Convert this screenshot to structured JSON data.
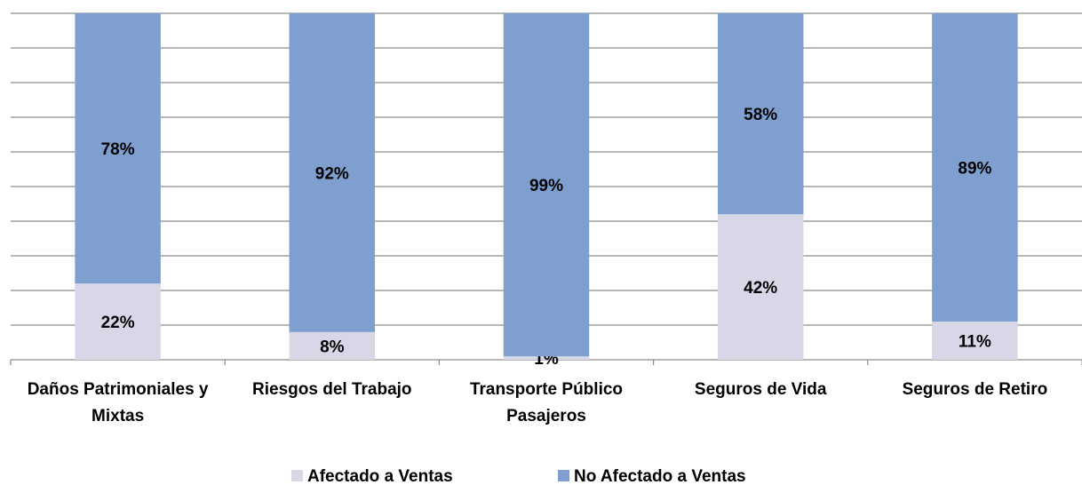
{
  "chart_data": {
    "type": "stacked_bar",
    "categories": [
      "Daños Patrimoniales y Mixtas",
      "Riesgos del Trabajo",
      "Transporte Público Pasajeros",
      "Seguros de Vida",
      "Seguros de Retiro"
    ],
    "series": [
      {
        "name": "Afectado a Ventas",
        "color": "#d7d7e8",
        "values": [
          22,
          8,
          1,
          42,
          11
        ],
        "value_labels": [
          "22%",
          "8%",
          "1%",
          "42%",
          "11%"
        ]
      },
      {
        "name": "No Afectado a Ventas",
        "color": "#7f9fd0",
        "values": [
          78,
          92,
          99,
          58,
          89
        ],
        "value_labels": [
          "78%",
          "92%",
          "99%",
          "58%",
          "89%"
        ]
      }
    ],
    "ylim": [
      0,
      100
    ],
    "yticks": [
      0,
      10,
      20,
      30,
      40,
      50,
      60,
      70,
      80,
      90,
      100
    ],
    "grid": true,
    "legend": "bottom"
  }
}
